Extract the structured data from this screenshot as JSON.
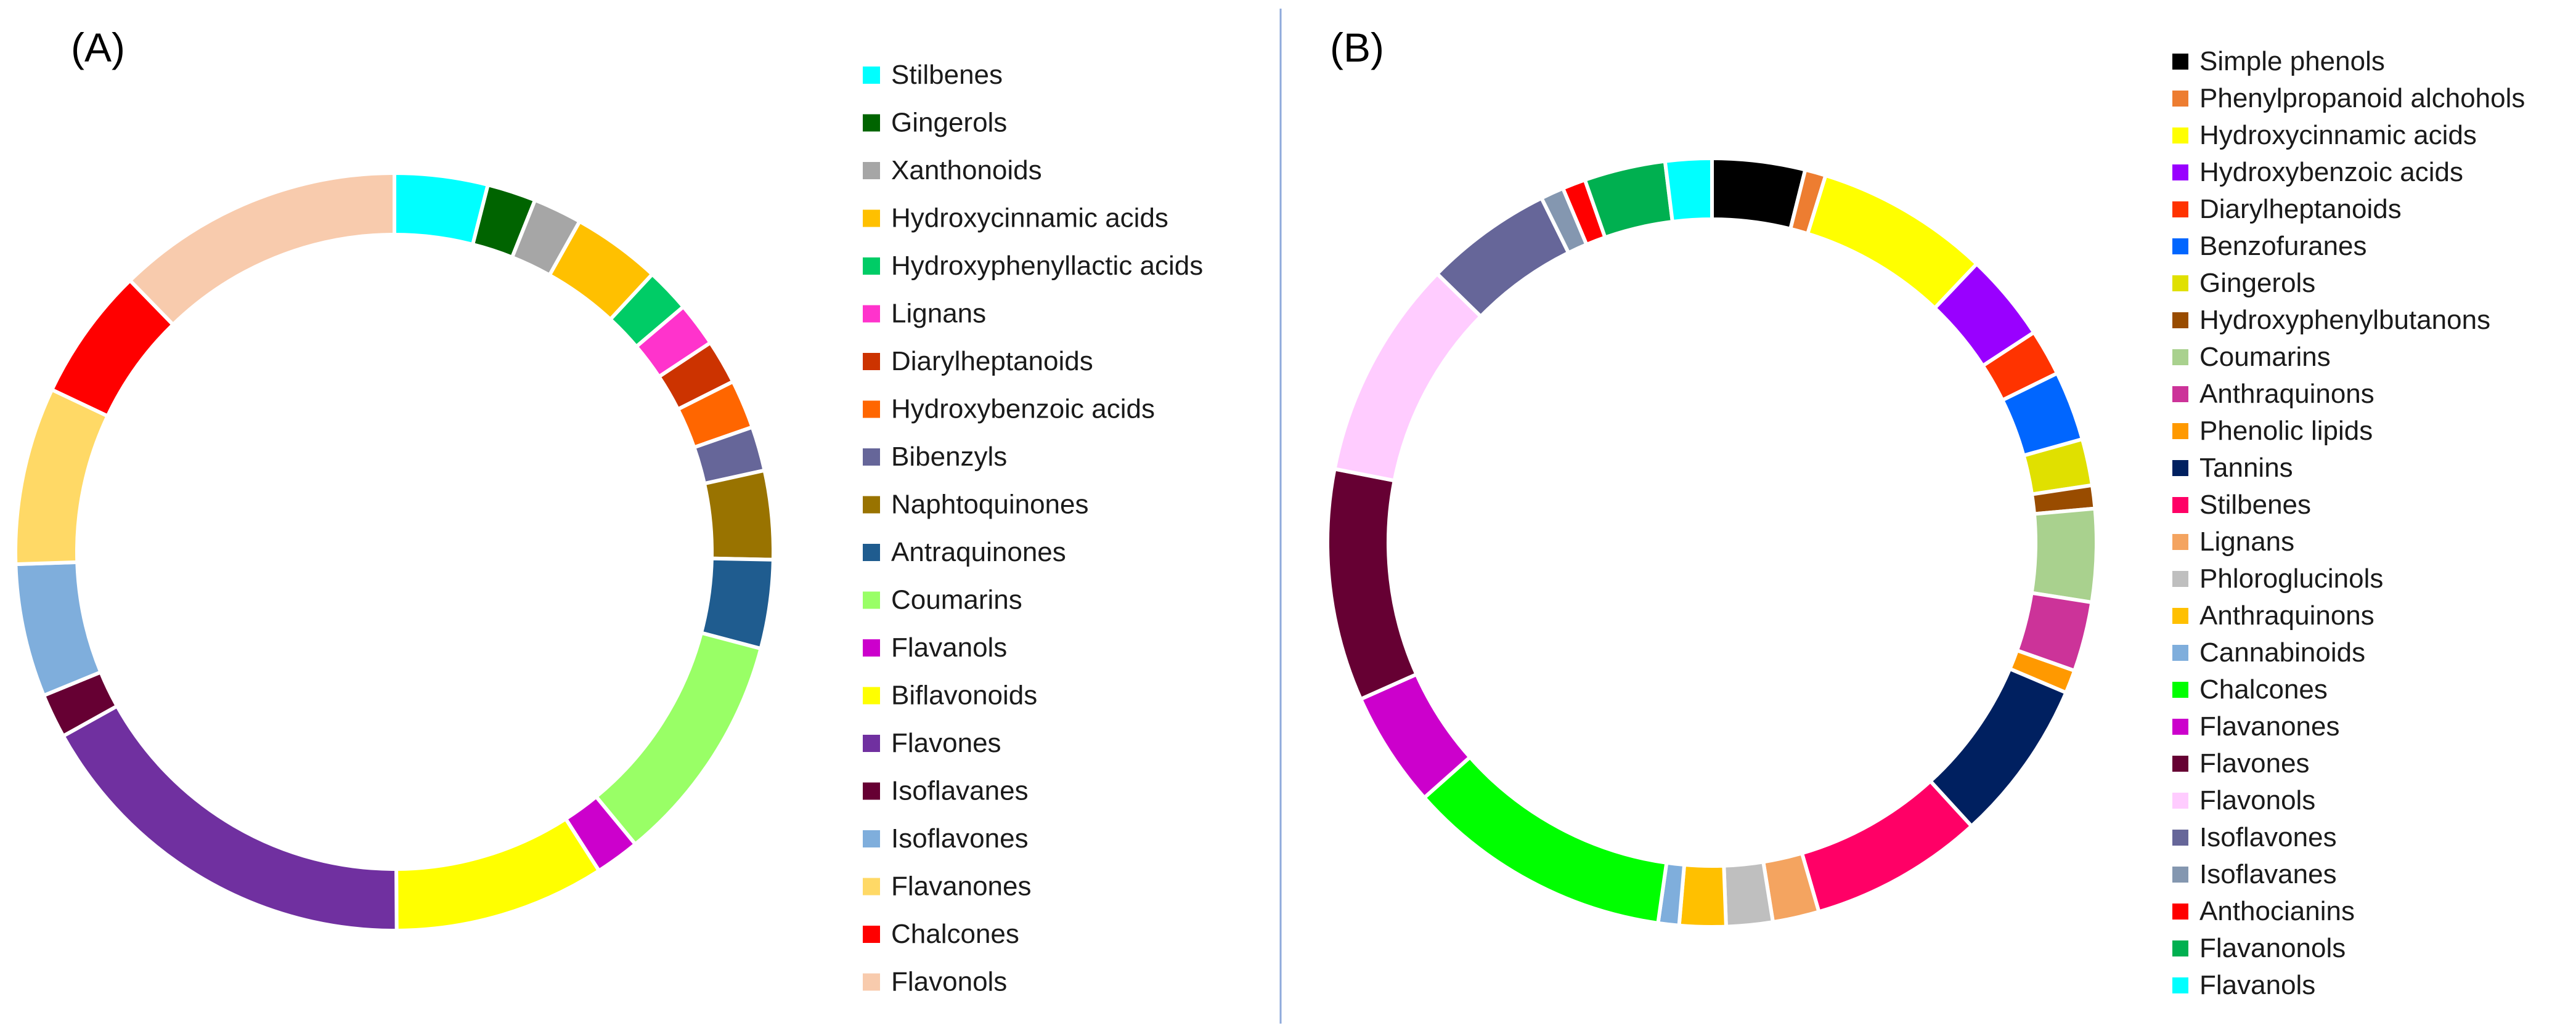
{
  "chart_data": [
    {
      "type": "pie",
      "panel_label": "(A)",
      "donut": true,
      "legend_position": "right",
      "categories": [
        "Stilbenes",
        "Gingerols",
        "Xanthonoids",
        "Hydroxycinnamic acids",
        "Hydroxyphenyllactic acids",
        "Lignans",
        "Diarylheptanoids",
        "Hydroxybenzoic acids",
        "Bibenzyls",
        "Naphtoquinones",
        "Antraquinones",
        "Coumarins",
        "Flavanols",
        "Biflavonoids",
        "Flavones",
        "Isoflavanes",
        "Isoflavones",
        "Flavanones",
        "Chalcones",
        "Flavonols"
      ],
      "values": [
        4.2,
        2.2,
        2.2,
        4.0,
        2.0,
        2.0,
        2.0,
        2.2,
        2.0,
        4.0,
        4.0,
        10.5,
        2.0,
        9.5,
        18.0,
        2.0,
        6.0,
        8.0,
        6.0,
        13.0
      ],
      "colors": [
        "#00FFFF",
        "#006400",
        "#A6A6A6",
        "#FFC000",
        "#00CC66",
        "#FF33CC",
        "#CC3300",
        "#FF6600",
        "#666699",
        "#997300",
        "#1F5C8F",
        "#99FF66",
        "#CC00CC",
        "#FFFF00",
        "#7030A0",
        "#660033",
        "#7FAEDC",
        "#FFD966",
        "#FF0000",
        "#F8CBAD"
      ]
    },
    {
      "type": "pie",
      "panel_label": "(B)",
      "donut": true,
      "legend_position": "right",
      "categories": [
        "Simple phenols",
        "Phenylpropanoid alchohols",
        "Hydroxycinnamic acids",
        "Hydroxybenzoic acids",
        "Diarylheptanoids",
        "Benzofuranes",
        "Gingerols",
        "Hydroxyphenylbutanons",
        "Coumarins",
        "Anthraquinons",
        "Phenolic lipids",
        "Tannins",
        "Stilbenes",
        "Lignans",
        "Phloroglucinols",
        "Anthraquinons",
        "Cannabinoids",
        "Chalcones",
        "Flavanones",
        "Flavones",
        "Flavonols",
        "Isoflavones",
        "Isoflavanes",
        "Anthocianins",
        "Flavanonols",
        "Flavanols"
      ],
      "values": [
        4.0,
        0.9,
        7.5,
        3.8,
        2.0,
        3.0,
        2.0,
        1.0,
        4.0,
        3.0,
        1.0,
        7.0,
        7.5,
        2.0,
        2.0,
        2.0,
        0.9,
        11.5,
        5.0,
        10.0,
        9.5,
        5.5,
        1.0,
        1.0,
        3.5,
        2.0
      ],
      "colors": [
        "#000000",
        "#ED7D31",
        "#FFFF00",
        "#9900FF",
        "#FF3300",
        "#0066FF",
        "#E0E000",
        "#994C00",
        "#A9D18E",
        "#CC3399",
        "#FF9900",
        "#002060",
        "#FF0066",
        "#F4A460",
        "#BFBFBF",
        "#FFC000",
        "#7FAEDC",
        "#00FF00",
        "#CC00CC",
        "#660033",
        "#FFCCFF",
        "#666699",
        "#8497B0",
        "#FF0000",
        "#00B050",
        "#00FFFF"
      ]
    }
  ]
}
